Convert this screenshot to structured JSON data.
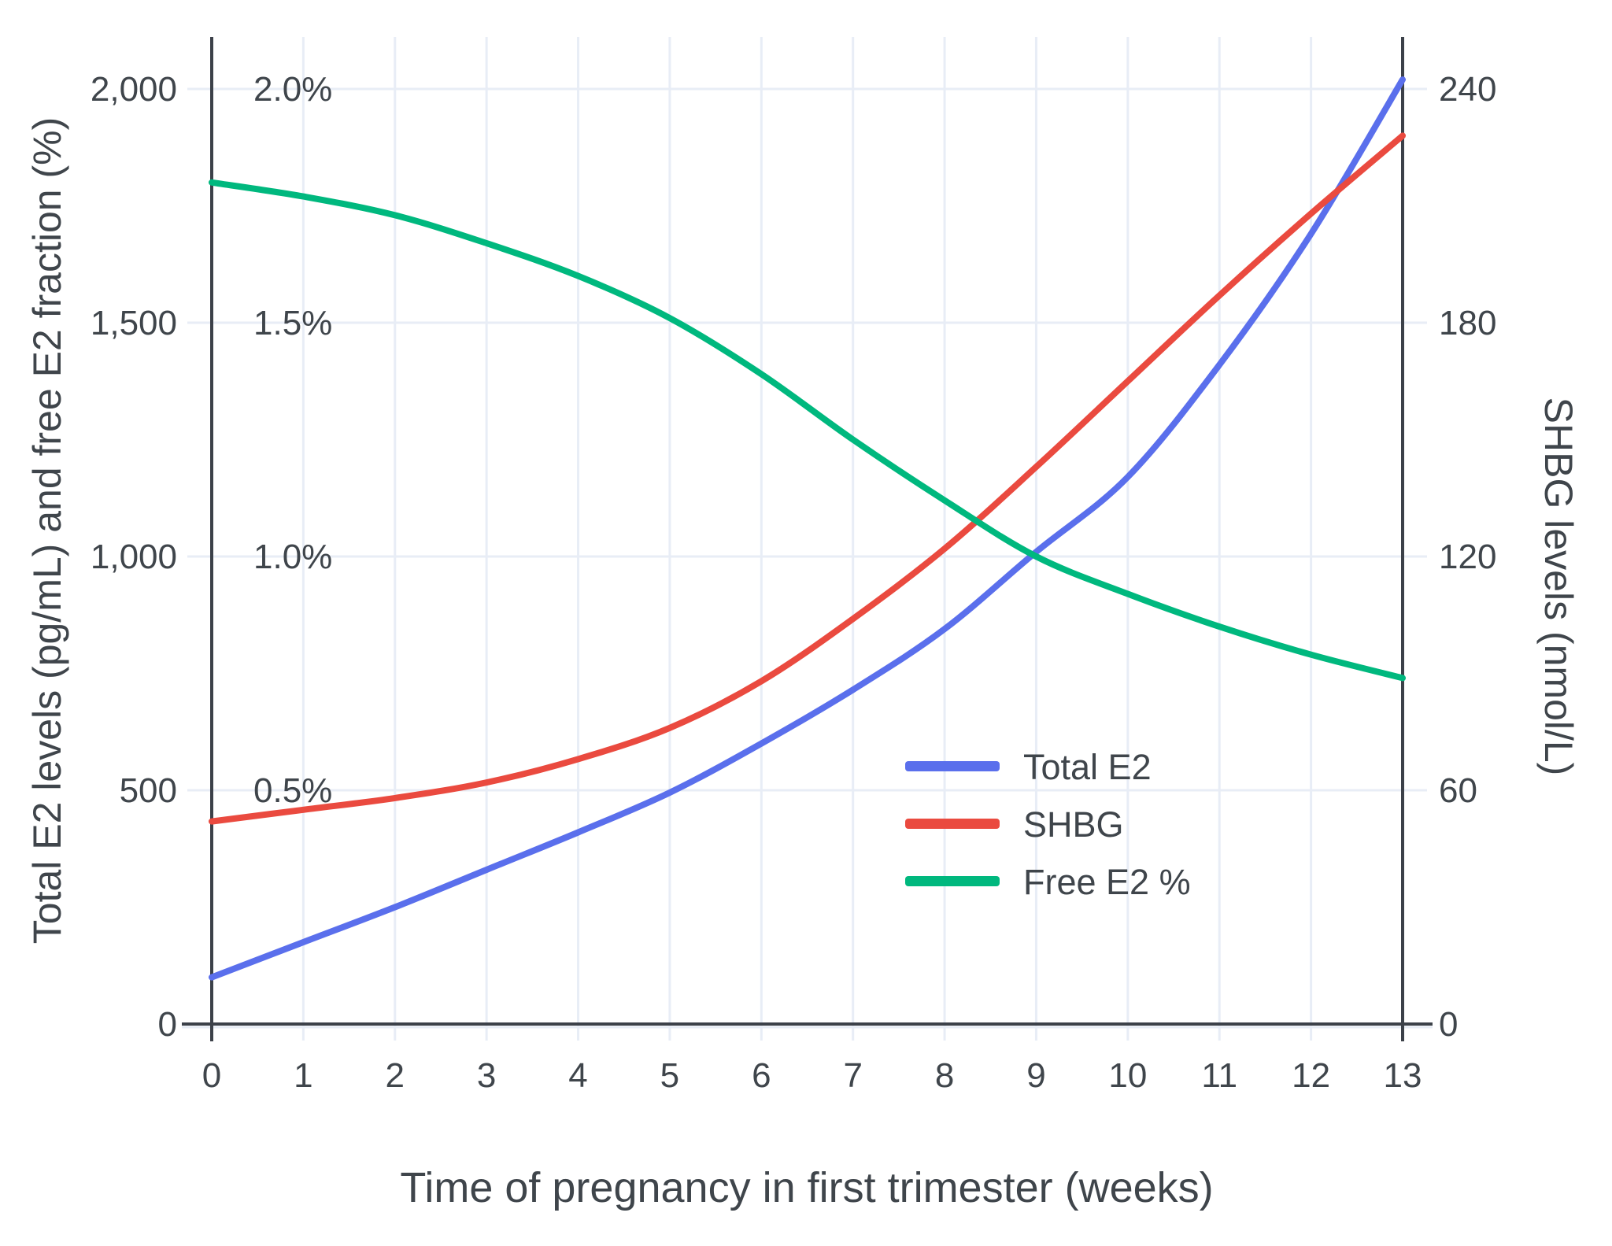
{
  "colors": {
    "total_e2": "#5a6fec",
    "shbg": "#ea4a3f",
    "free_e2": "#00b87e",
    "grid": "#e8edf6",
    "axis": "#3c4149",
    "text": "#3f454b",
    "background": "#ffffff"
  },
  "chart_data": {
    "type": "line",
    "title": "",
    "xlabel": "Time of pregnancy in first trimester (weeks)",
    "ylabel_left": "Total E2 levels (pg/mL) and free E2 fraction (%)",
    "ylabel_right": "SHBG levels (nmol/L)",
    "x": [
      0,
      1,
      2,
      3,
      4,
      5,
      6,
      7,
      8,
      9,
      10,
      11,
      12,
      13
    ],
    "x_tick_labels": [
      "0",
      "1",
      "2",
      "3",
      "4",
      "5",
      "6",
      "7",
      "8",
      "9",
      "10",
      "11",
      "12",
      "13"
    ],
    "grid": true,
    "left_axis": {
      "range": [
        0,
        2110
      ],
      "units": "pg/mL (Total E2) and left-units = percent x 1000 (free E2)",
      "ticks": [
        {
          "label": "0",
          "value": 0
        },
        {
          "label": "500",
          "value": 500
        },
        {
          "label": "1,000",
          "value": 1000
        },
        {
          "label": "1,500",
          "value": 1500
        },
        {
          "label": "2,000",
          "value": 2000
        }
      ]
    },
    "percent_ticks": [
      {
        "label": "0.5%",
        "value": 500
      },
      {
        "label": "1.0%",
        "value": 1000
      },
      {
        "label": "1.5%",
        "value": 1500
      },
      {
        "label": "2.0%",
        "value": 2000
      }
    ],
    "right_axis": {
      "range": [
        0,
        253
      ],
      "units": "nmol/L",
      "ticks": [
        {
          "label": "0",
          "value": 0
        },
        {
          "label": "60",
          "value": 60
        },
        {
          "label": "120",
          "value": 120
        },
        {
          "label": "180",
          "value": 180
        },
        {
          "label": "240",
          "value": 240
        }
      ]
    },
    "series": [
      {
        "name": "Total E2",
        "axis": "left",
        "unit": "pg/mL",
        "color": "#5a6fec",
        "values": [
          100,
          175,
          250,
          330,
          410,
          495,
          600,
          715,
          845,
          1010,
          1170,
          1410,
          1690,
          2020
        ]
      },
      {
        "name": "SHBG",
        "axis": "right",
        "unit": "nmol/L",
        "color": "#ea4a3f",
        "values": [
          52,
          55,
          58,
          62,
          68,
          76,
          88,
          104,
          122,
          143,
          165,
          187,
          208,
          228
        ]
      },
      {
        "name": "Free E2 %",
        "axis": "percent",
        "unit": "%",
        "color": "#00b87e",
        "values": [
          1.8,
          1.77,
          1.73,
          1.67,
          1.6,
          1.51,
          1.39,
          1.25,
          1.12,
          1.0,
          0.92,
          0.85,
          0.79,
          0.74
        ]
      }
    ],
    "legend": {
      "position": "inside-right-middle",
      "items": [
        "Total E2",
        "SHBG",
        "Free E2 %"
      ]
    }
  }
}
